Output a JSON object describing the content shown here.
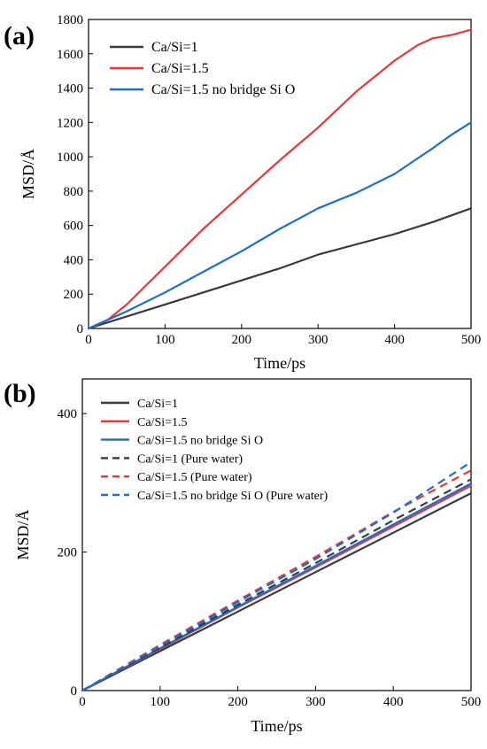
{
  "chart_data": [
    {
      "panel": "(a)",
      "type": "line",
      "xlabel": "Time/ps",
      "ylabel": "MSD/Å",
      "xlim": [
        0,
        500
      ],
      "ylim": [
        0,
        1800
      ],
      "xticks": [
        0,
        100,
        200,
        300,
        400,
        500
      ],
      "yticks": [
        0,
        200,
        400,
        600,
        800,
        1000,
        1200,
        1400,
        1600,
        1800
      ],
      "legend_position": "top-left",
      "series": [
        {
          "name": "Ca/Si=1",
          "color": "#3a3a3a",
          "dash": "solid",
          "x": [
            0,
            50,
            100,
            150,
            200,
            250,
            300,
            350,
            400,
            450,
            500
          ],
          "y": [
            0,
            70,
            140,
            210,
            280,
            350,
            430,
            490,
            550,
            620,
            700
          ]
        },
        {
          "name": "Ca/Si=1.5",
          "color": "#e8373a",
          "dash": "solid",
          "x": [
            0,
            25,
            50,
            75,
            100,
            150,
            200,
            250,
            300,
            350,
            400,
            430,
            450,
            475,
            500
          ],
          "y": [
            0,
            50,
            140,
            250,
            360,
            580,
            780,
            980,
            1170,
            1380,
            1560,
            1650,
            1690,
            1710,
            1740
          ]
        },
        {
          "name": "Ca/Si=1.5 no bridge Si O",
          "color": "#1e6ec8",
          "dash": "solid",
          "x": [
            0,
            50,
            100,
            150,
            200,
            250,
            300,
            350,
            400,
            430,
            450,
            475,
            500
          ],
          "y": [
            0,
            100,
            210,
            330,
            450,
            580,
            700,
            790,
            900,
            990,
            1050,
            1130,
            1200
          ]
        }
      ]
    },
    {
      "panel": "(b)",
      "type": "line",
      "xlabel": "Time/ps",
      "ylabel": "MSD/Å",
      "xlim": [
        0,
        500
      ],
      "ylim": [
        0,
        450
      ],
      "xticks": [
        0,
        100,
        200,
        300,
        400,
        500
      ],
      "yticks": [
        0,
        200,
        400
      ],
      "legend_position": "top-left",
      "series": [
        {
          "name": "Ca/Si=1",
          "color": "#3a3a3a",
          "dash": "solid",
          "x": [
            0,
            100,
            200,
            300,
            400,
            500
          ],
          "y": [
            0,
            57,
            114,
            171,
            228,
            285
          ]
        },
        {
          "name": "Ca/Si=1.5",
          "color": "#e8373a",
          "dash": "solid",
          "x": [
            0,
            100,
            200,
            300,
            400,
            500
          ],
          "y": [
            0,
            60,
            120,
            178,
            237,
            296
          ]
        },
        {
          "name": "Ca/Si=1.5 no bridge Si O",
          "color": "#1e6ec8",
          "dash": "solid",
          "x": [
            0,
            100,
            200,
            300,
            400,
            500
          ],
          "y": [
            0,
            61,
            121,
            180,
            240,
            299
          ]
        },
        {
          "name": "Ca/Si=1 (Pure water)",
          "color": "#3a3a3a",
          "dash": "dashed",
          "x": [
            0,
            100,
            200,
            300,
            400,
            500
          ],
          "y": [
            0,
            62,
            124,
            184,
            246,
            305
          ]
        },
        {
          "name": "Ca/Si=1.5 (Pure water)",
          "color": "#e8373a",
          "dash": "dashed",
          "x": [
            0,
            100,
            200,
            300,
            400,
            450,
            500
          ],
          "y": [
            0,
            66,
            130,
            193,
            258,
            288,
            318
          ]
        },
        {
          "name": "Ca/Si=1.5 no bridge Si O (Pure water)",
          "color": "#1e6ec8",
          "dash": "dashed",
          "x": [
            0,
            100,
            200,
            300,
            400,
            500
          ],
          "y": [
            0,
            64,
            128,
            190,
            257,
            330
          ]
        }
      ]
    }
  ]
}
